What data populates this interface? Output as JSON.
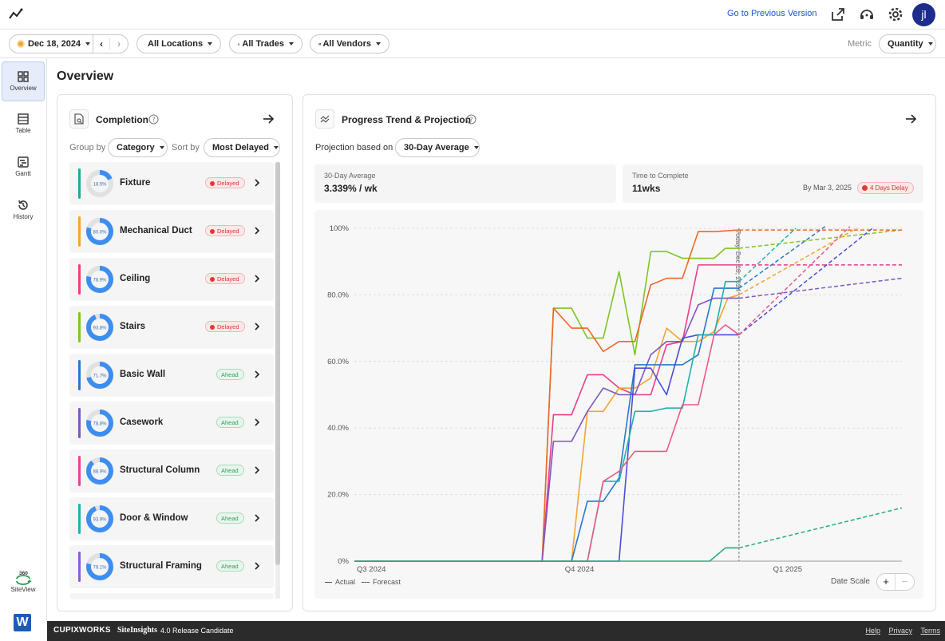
{
  "topbar": {
    "prev_version": "Go to Previous Version",
    "avatar_initials": "jl"
  },
  "filters": {
    "date": "Dec 18, 2024",
    "locations": "All Locations",
    "trades": "All Trades",
    "vendors": "All Vendors",
    "metric_label": "Metric",
    "metric_value": "Quantity"
  },
  "sidenav": [
    {
      "label": "Overview",
      "icon": "grid-icon"
    },
    {
      "label": "Table",
      "icon": "table-icon"
    },
    {
      "label": "Gantt",
      "icon": "gantt-icon"
    },
    {
      "label": "History",
      "icon": "history-icon"
    },
    {
      "label": "SiteView",
      "icon": "siteview-360-icon",
      "badge": "360"
    }
  ],
  "main": {
    "title": "Overview"
  },
  "completion": {
    "title": "Completion",
    "group_by_label": "Group by",
    "group_by_value": "Category",
    "sort_by_label": "Sort by",
    "sort_by_value": "Most Delayed",
    "items": [
      {
        "label": "Fixture",
        "pct": "18.5%",
        "value": 18.5,
        "status": "Delayed",
        "color": "#26a69a"
      },
      {
        "label": "Mechanical Duct",
        "pct": "80.0%",
        "value": 80.0,
        "status": "Delayed",
        "color": "#f4a433"
      },
      {
        "label": "Ceiling",
        "pct": "78.9%",
        "value": 78.9,
        "status": "Delayed",
        "color": "#ec407a"
      },
      {
        "label": "Stairs",
        "pct": "93.8%",
        "value": 93.8,
        "status": "Delayed",
        "color": "#7cc623"
      },
      {
        "label": "Basic Wall",
        "pct": "71.7%",
        "value": 71.7,
        "status": "Ahead",
        "color": "#2979c9"
      },
      {
        "label": "Casework",
        "pct": "78.8%",
        "value": 78.8,
        "status": "Ahead",
        "color": "#7e57c2"
      },
      {
        "label": "Structural Column",
        "pct": "88.9%",
        "value": 88.9,
        "status": "Ahead",
        "color": "#e84393"
      },
      {
        "label": "Door & Window",
        "pct": "93.9%",
        "value": 93.9,
        "status": "Ahead",
        "color": "#20b2aa"
      },
      {
        "label": "Structural Framing",
        "pct": "79.1%",
        "value": 79.1,
        "status": "Ahead",
        "color": "#8a5cd6"
      }
    ]
  },
  "progress": {
    "title": "Progress Trend & Projection",
    "projection_label": "Projection based on",
    "projection_value": "30-Day Average",
    "avg_label": "30-Day Average",
    "avg_value": "3.339% / wk",
    "ttc_label": "Time to Complete",
    "ttc_value": "11wks",
    "by_date": "By Mar 3, 2025",
    "delay_badge": "4 Days Delay",
    "legend_actual": "Actual",
    "legend_forecast": "Forecast",
    "date_scale_label": "Date Scale",
    "today_label": "Today, Dec 18, 2024"
  },
  "footer": {
    "brand": "CUPIXWORKS",
    "product": "SiteInsights",
    "version": "4.0 Release Candidate",
    "links": [
      "Help",
      "Privacy",
      "Terms"
    ]
  },
  "chart_data": {
    "type": "line",
    "x_ticks": [
      "Q3 2024",
      "Q4 2024",
      "Q1 2025"
    ],
    "x_range": [
      "2024-07-01",
      "2025-02-28"
    ],
    "y_ticks": [
      "0%",
      "20.0%",
      "40.0%",
      "60.0%",
      "80.0%",
      "100%"
    ],
    "ylim": [
      0,
      100
    ],
    "today": "2024-12-18",
    "grid": true,
    "series": [
      {
        "color": "#7cc623",
        "actual": [
          [
            "2024-07-01",
            0
          ],
          [
            "2024-09-22",
            0
          ],
          [
            "2024-09-27",
            76
          ],
          [
            "2024-10-05",
            76
          ],
          [
            "2024-10-12",
            67
          ],
          [
            "2024-10-19",
            67
          ],
          [
            "2024-10-26",
            87
          ],
          [
            "2024-11-02",
            62
          ],
          [
            "2024-11-09",
            93
          ],
          [
            "2024-11-16",
            93
          ],
          [
            "2024-11-23",
            91
          ],
          [
            "2024-11-30",
            91
          ],
          [
            "2024-12-07",
            91
          ],
          [
            "2024-12-12",
            94
          ],
          [
            "2024-12-18",
            94
          ]
        ],
        "forecast": [
          [
            "2024-12-18",
            94
          ],
          [
            "2025-02-28",
            99.5
          ]
        ]
      },
      {
        "color": "#f0662a",
        "actual": [
          [
            "2024-07-01",
            0
          ],
          [
            "2024-09-22",
            0
          ],
          [
            "2024-09-27",
            76
          ],
          [
            "2024-10-05",
            70
          ],
          [
            "2024-10-12",
            70
          ],
          [
            "2024-10-19",
            63
          ],
          [
            "2024-10-26",
            66
          ],
          [
            "2024-11-02",
            66
          ],
          [
            "2024-11-09",
            83
          ],
          [
            "2024-11-16",
            85
          ],
          [
            "2024-11-23",
            85
          ],
          [
            "2024-11-30",
            99
          ],
          [
            "2024-12-07",
            99
          ],
          [
            "2024-12-18",
            99.5
          ]
        ],
        "forecast": [
          [
            "2024-12-18",
            99.5
          ],
          [
            "2025-02-28",
            99.5
          ]
        ]
      },
      {
        "color": "#e83e8c",
        "actual": [
          [
            "2024-07-01",
            0
          ],
          [
            "2024-09-22",
            0
          ],
          [
            "2024-09-27",
            44
          ],
          [
            "2024-10-05",
            44
          ],
          [
            "2024-10-12",
            56
          ],
          [
            "2024-10-19",
            56
          ],
          [
            "2024-10-26",
            52
          ],
          [
            "2024-11-02",
            50
          ],
          [
            "2024-11-09",
            50
          ],
          [
            "2024-11-16",
            65
          ],
          [
            "2024-11-23",
            66
          ],
          [
            "2024-11-30",
            89
          ],
          [
            "2024-12-07",
            89
          ],
          [
            "2024-12-18",
            89
          ]
        ],
        "forecast": [
          [
            "2024-12-18",
            89
          ],
          [
            "2025-02-28",
            89
          ]
        ]
      },
      {
        "color": "#f4a433",
        "actual": [
          [
            "2024-07-01",
            0
          ],
          [
            "2024-10-05",
            0
          ],
          [
            "2024-10-12",
            45
          ],
          [
            "2024-10-19",
            45
          ],
          [
            "2024-10-26",
            52
          ],
          [
            "2024-11-02",
            52
          ],
          [
            "2024-11-09",
            55
          ],
          [
            "2024-11-16",
            70
          ],
          [
            "2024-11-23",
            66
          ],
          [
            "2024-11-30",
            66
          ],
          [
            "2024-12-07",
            69
          ],
          [
            "2024-12-13",
            79
          ],
          [
            "2024-12-18",
            80
          ]
        ],
        "forecast": [
          [
            "2024-12-18",
            80
          ],
          [
            "2025-02-08",
            100
          ]
        ]
      },
      {
        "color": "#7e57c2",
        "actual": [
          [
            "2024-07-01",
            0
          ],
          [
            "2024-09-22",
            0
          ],
          [
            "2024-09-27",
            36
          ],
          [
            "2024-10-05",
            36
          ],
          [
            "2024-10-12",
            45
          ],
          [
            "2024-10-19",
            52
          ],
          [
            "2024-10-26",
            50
          ],
          [
            "2024-11-02",
            50
          ],
          [
            "2024-11-09",
            62
          ],
          [
            "2024-11-16",
            66
          ],
          [
            "2024-11-23",
            66
          ],
          [
            "2024-11-30",
            77
          ],
          [
            "2024-12-07",
            79
          ],
          [
            "2024-12-18",
            79
          ]
        ],
        "forecast": [
          [
            "2024-12-18",
            79
          ],
          [
            "2025-02-28",
            85
          ]
        ]
      },
      {
        "color": "#2979c9",
        "actual": [
          [
            "2024-07-01",
            0
          ],
          [
            "2024-10-05",
            0
          ],
          [
            "2024-10-12",
            18
          ],
          [
            "2024-10-19",
            18
          ],
          [
            "2024-10-26",
            25
          ],
          [
            "2024-11-02",
            59
          ],
          [
            "2024-11-09",
            59
          ],
          [
            "2024-11-16",
            59
          ],
          [
            "2024-11-23",
            59
          ],
          [
            "2024-11-30",
            62
          ],
          [
            "2024-12-07",
            82
          ],
          [
            "2024-12-12",
            82
          ],
          [
            "2024-12-18",
            82
          ]
        ],
        "forecast": [
          [
            "2024-12-18",
            82
          ],
          [
            "2025-01-25",
            100.5
          ]
        ]
      },
      {
        "color": "#4a4fd6",
        "actual": [
          [
            "2024-07-01",
            0
          ],
          [
            "2024-10-19",
            0
          ],
          [
            "2024-10-26",
            0
          ],
          [
            "2024-11-02",
            58
          ],
          [
            "2024-11-09",
            58
          ],
          [
            "2024-11-16",
            50
          ],
          [
            "2024-11-23",
            67
          ],
          [
            "2024-11-30",
            68
          ],
          [
            "2024-12-07",
            68
          ],
          [
            "2024-12-18",
            68
          ]
        ],
        "forecast": [
          [
            "2024-12-18",
            68
          ],
          [
            "2025-02-15",
            100
          ]
        ]
      },
      {
        "color": "#20b2aa",
        "actual": [
          [
            "2024-07-01",
            0
          ],
          [
            "2024-10-12",
            0
          ],
          [
            "2024-10-19",
            24
          ],
          [
            "2024-10-26",
            24
          ],
          [
            "2024-11-02",
            45
          ],
          [
            "2024-11-09",
            45
          ],
          [
            "2024-11-16",
            46
          ],
          [
            "2024-11-23",
            46
          ],
          [
            "2024-11-30",
            68
          ],
          [
            "2024-12-07",
            68
          ],
          [
            "2024-12-12",
            84
          ],
          [
            "2024-12-18",
            84
          ]
        ],
        "forecast": [
          [
            "2024-12-18",
            84
          ],
          [
            "2025-01-12",
            100
          ]
        ]
      },
      {
        "color": "#e85a86",
        "actual": [
          [
            "2024-07-01",
            0
          ],
          [
            "2024-10-12",
            0
          ],
          [
            "2024-10-19",
            24
          ],
          [
            "2024-10-26",
            27
          ],
          [
            "2024-11-02",
            33
          ],
          [
            "2024-11-09",
            33
          ],
          [
            "2024-11-16",
            33
          ],
          [
            "2024-11-23",
            47
          ],
          [
            "2024-11-30",
            47
          ],
          [
            "2024-12-07",
            68
          ],
          [
            "2024-12-12",
            71
          ],
          [
            "2024-12-18",
            68
          ]
        ],
        "forecast": [
          [
            "2024-12-18",
            68
          ],
          [
            "2025-02-05",
            100.5
          ]
        ]
      },
      {
        "color": "#27ae7a",
        "actual": [
          [
            "2024-07-01",
            0
          ],
          [
            "2024-12-05",
            0
          ],
          [
            "2024-12-12",
            4
          ],
          [
            "2024-12-18",
            4
          ]
        ],
        "forecast": [
          [
            "2024-12-18",
            4
          ],
          [
            "2025-02-28",
            16
          ]
        ]
      }
    ]
  }
}
